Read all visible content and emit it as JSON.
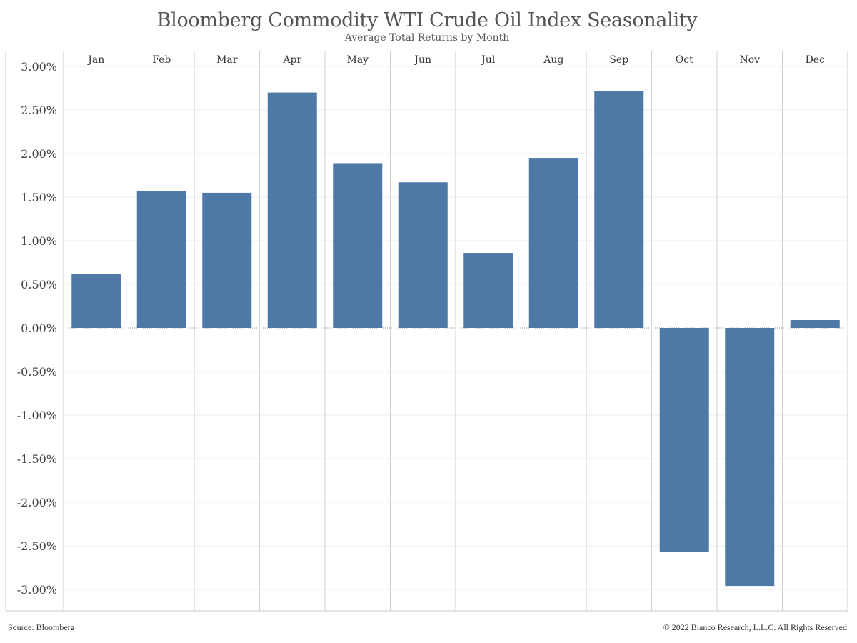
{
  "chart_data": {
    "type": "bar",
    "title": "Bloomberg Commodity WTI Crude Oil Index Seasonality",
    "subtitle": "Average Total Returns by Month",
    "categories": [
      "Jan",
      "Feb",
      "Mar",
      "Apr",
      "May",
      "Jun",
      "Jul",
      "Aug",
      "Sep",
      "Oct",
      "Nov",
      "Dec"
    ],
    "values": [
      0.62,
      1.57,
      1.55,
      2.7,
      1.89,
      1.67,
      0.86,
      1.95,
      2.72,
      -2.57,
      -2.96,
      0.09
    ],
    "ylim": [
      -3.25,
      3.1
    ],
    "yticks": [
      3.0,
      2.5,
      2.0,
      1.5,
      1.0,
      0.5,
      0.0,
      -0.5,
      -1.0,
      -1.5,
      -2.0,
      -2.5,
      -3.0
    ],
    "ytick_labels": [
      "3.00%",
      "2.50%",
      "2.00%",
      "1.50%",
      "1.00%",
      "0.50%",
      "0.00%",
      "-0.50%",
      "-1.00%",
      "-1.50%",
      "-2.00%",
      "-2.50%",
      "-3.00%"
    ],
    "bar_color": "#4e79a7",
    "grid": true
  },
  "footer": {
    "source": "Source: Bloomberg",
    "copyright": "© 2022 Bianco Research, L.L.C. All Rights Reserved"
  }
}
